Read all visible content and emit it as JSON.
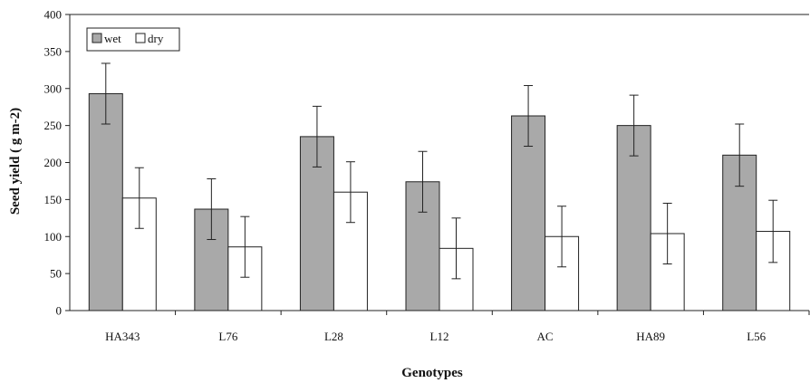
{
  "chart_data": {
    "type": "bar",
    "xlabel": "Genotypes",
    "ylabel": "Seed yield ( g m-2)",
    "ylim": [
      0,
      400
    ],
    "yticks": [
      "0",
      "50",
      "100",
      "150",
      "200",
      "250",
      "300",
      "350",
      "400"
    ],
    "categories": [
      "HA343",
      "L76",
      "L28",
      "L12",
      "AC",
      "HA89",
      "L56"
    ],
    "series": [
      {
        "name": "wet",
        "color": "#a9a9a9",
        "values": [
          293,
          137,
          235,
          174,
          263,
          250,
          210
        ],
        "error": [
          41,
          41,
          41,
          41,
          41,
          41,
          42
        ]
      },
      {
        "name": "dry",
        "color": "#ffffff",
        "values": [
          152,
          86,
          160,
          84,
          100,
          104,
          107
        ],
        "error": [
          41,
          41,
          41,
          41,
          41,
          41,
          42
        ]
      }
    ],
    "legend_position": "top-left",
    "grid": false
  }
}
